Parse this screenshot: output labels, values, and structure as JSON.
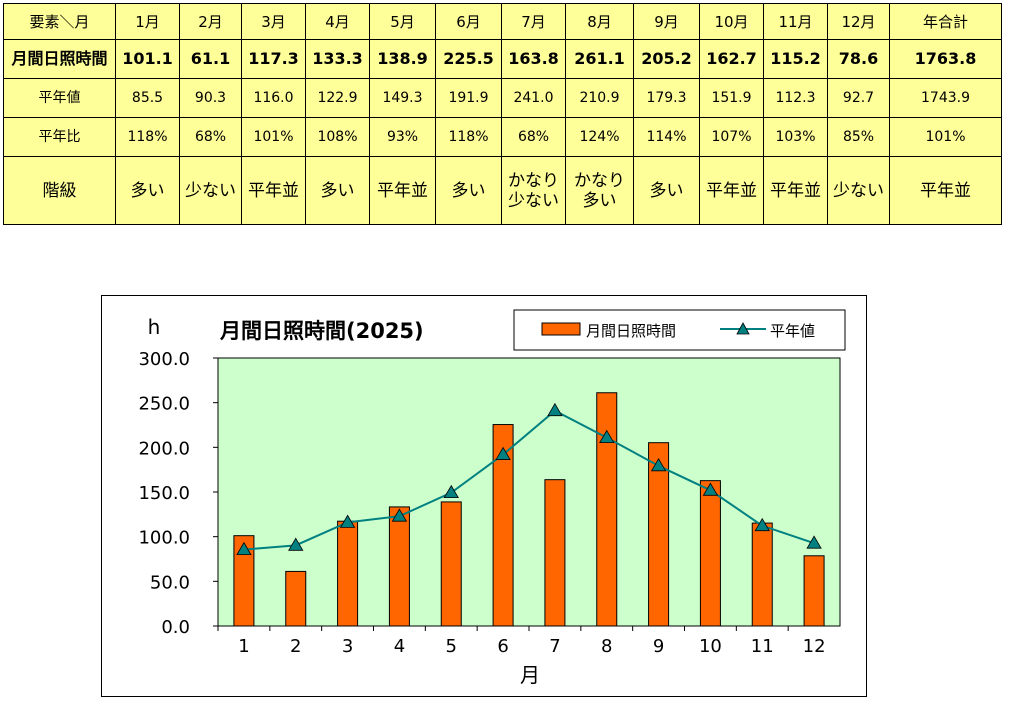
{
  "table": {
    "corner": "要素＼月",
    "months": [
      "1月",
      "2月",
      "3月",
      "4月",
      "5月",
      "6月",
      "7月",
      "8月",
      "9月",
      "10月",
      "11月",
      "12月"
    ],
    "total_header": "年合計",
    "rows": [
      {
        "label": "月間日照時間",
        "values": [
          "101.1",
          "61.1",
          "117.3",
          "133.3",
          "138.9",
          "225.5",
          "163.8",
          "261.1",
          "205.2",
          "162.7",
          "115.2",
          "78.6"
        ],
        "total": "1763.8"
      },
      {
        "label": "平年値",
        "values": [
          "85.5",
          "90.3",
          "116.0",
          "122.9",
          "149.3",
          "191.9",
          "241.0",
          "210.9",
          "179.3",
          "151.9",
          "112.3",
          "92.7"
        ],
        "total": "1743.9"
      },
      {
        "label": "平年比",
        "values": [
          "118%",
          "68%",
          "101%",
          "108%",
          "93%",
          "118%",
          "68%",
          "124%",
          "114%",
          "107%",
          "103%",
          "85%"
        ],
        "total": "101%"
      },
      {
        "label": "階級",
        "values": [
          "多い",
          "少ない",
          "平年並",
          "多い",
          "平年並",
          "多い",
          "かなり\n少ない",
          "かなり\n多い",
          "多い",
          "平年並",
          "平年並",
          "少ない"
        ],
        "total": "平年並"
      }
    ]
  },
  "chart_data": {
    "type": "bar",
    "title": "月間日照時間(2025)",
    "ylabel": "h",
    "xlabel": "月",
    "categories": [
      "1",
      "2",
      "3",
      "4",
      "5",
      "6",
      "7",
      "8",
      "9",
      "10",
      "11",
      "12"
    ],
    "ylim": [
      0,
      300
    ],
    "yticks": [
      "0.0",
      "50.0",
      "100.0",
      "150.0",
      "200.0",
      "250.0",
      "300.0"
    ],
    "series": [
      {
        "name": "月間日照時間",
        "type": "bar",
        "values": [
          101.1,
          61.1,
          117.3,
          133.3,
          138.9,
          225.5,
          163.8,
          261.1,
          205.2,
          162.7,
          115.2,
          78.6
        ]
      },
      {
        "name": "平年値",
        "type": "line",
        "values": [
          85.5,
          90.3,
          116.0,
          122.9,
          149.3,
          191.9,
          241.0,
          210.9,
          179.3,
          151.9,
          112.3,
          92.7
        ]
      }
    ],
    "legend_position": "top-right",
    "colors": {
      "bar": "#ff6600",
      "line": "#008080",
      "marker": "#008080",
      "plot_bg": "#ccffcc"
    }
  }
}
